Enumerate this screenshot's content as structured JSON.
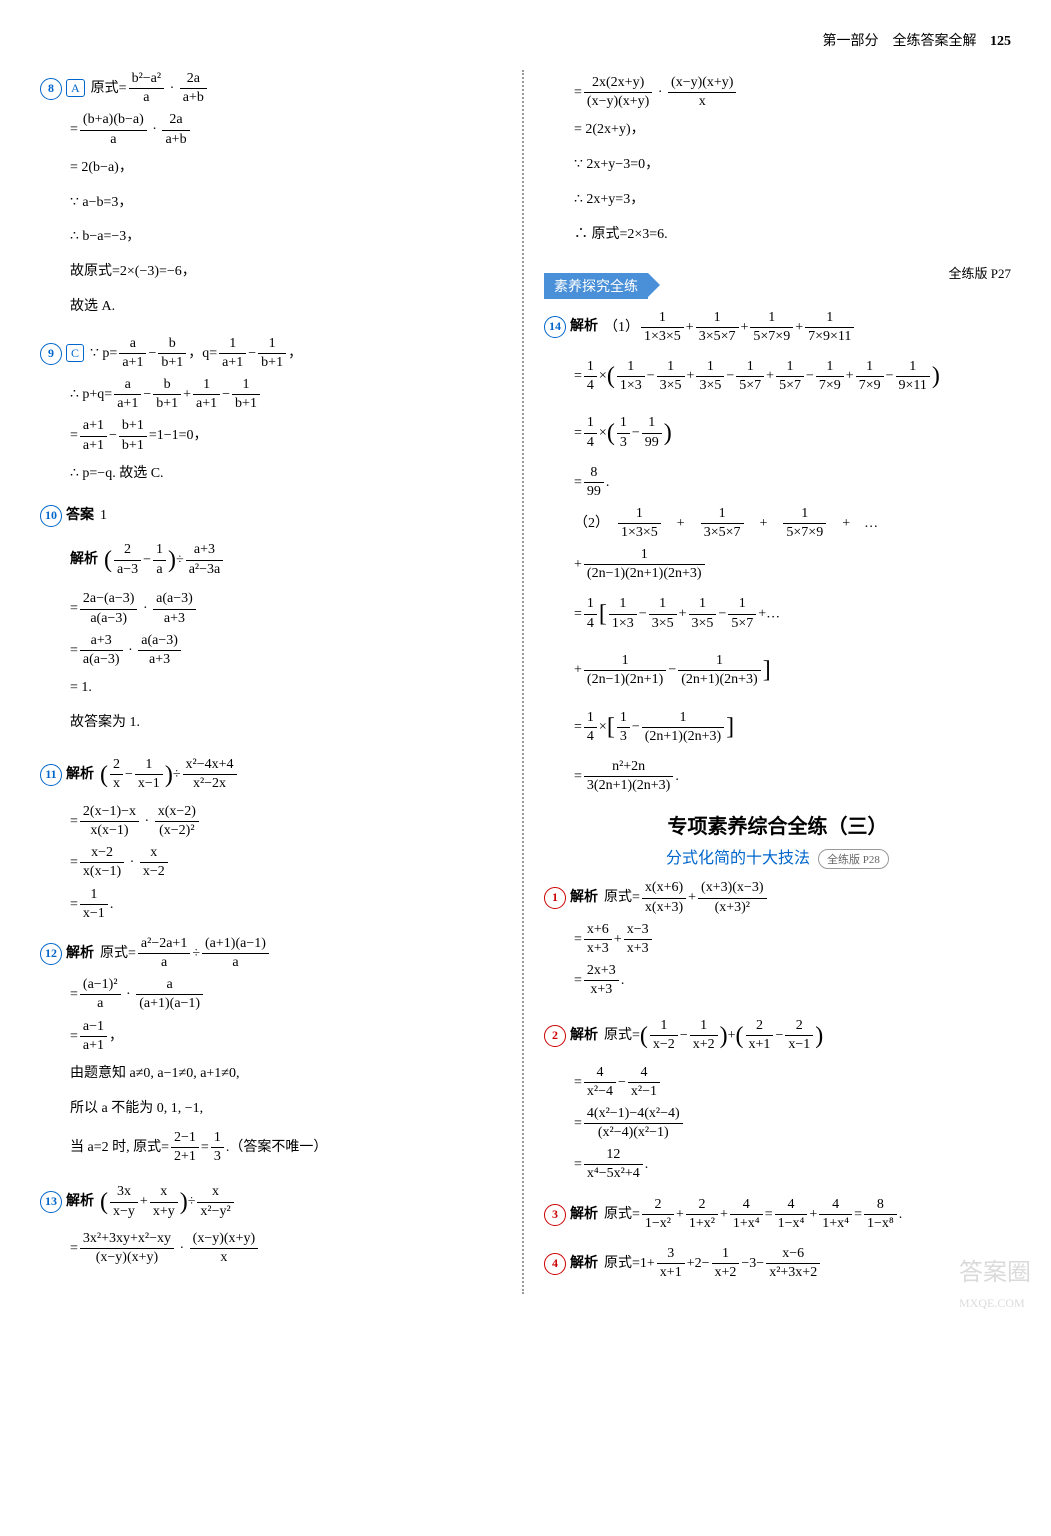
{
  "header": {
    "section": "第一部分　全练答案全解",
    "pagenum": "125"
  },
  "watermark": "答案圈",
  "watermark_url": "MXQE.COM",
  "left": {
    "p8": {
      "num": "8",
      "ans": "A",
      "lines": [
        "原式 = (b²−a²)/a · 2a/(a+b)",
        "= (b+a)(b−a)/a · 2a/(a+b)",
        "= 2(b−a)，",
        "∵ a−b=3，",
        "∴ b−a=−3，",
        "故原式=2×(−3)=−6，",
        "故选 A."
      ]
    },
    "p9": {
      "num": "9",
      "ans": "C",
      "lines": [
        "∵ p = a/(a+1) − b/(b+1)，q = 1/(a+1) − 1/(b+1)，",
        "∴ p+q = a/(a+1) − b/(b+1) + 1/(a+1) − 1/(b+1)",
        "= (a+1)/(a+1) − (b+1)/(b+1) = 1−1 = 0，",
        "∴ p=−q. 故选 C."
      ]
    },
    "p10": {
      "num": "10",
      "label": "答案",
      "answer": "1",
      "label2": "解析",
      "lines": [
        "(2/(a−3) − 1/a) ÷ (a+3)/(a²−3a)",
        "= [2a−(a−3)]/[a(a−3)] · a(a−3)/(a+3)",
        "= (a+3)/[a(a−3)] · a(a−3)/(a+3)",
        "= 1.",
        "故答案为 1."
      ]
    },
    "p11": {
      "num": "11",
      "label": "解析",
      "lines": [
        "(2/x − 1/(x−1)) ÷ (x²−4x+4)/(x²−2x)",
        "= [2(x−1)−x]/[x(x−1)] · x(x−2)/(x−2)²",
        "= (x−2)/[x(x−1)] · x/(x−2)",
        "= 1/(x−1)."
      ]
    },
    "p12": {
      "num": "12",
      "label": "解析",
      "lines": [
        "原式 = (a²−2a+1)/a ÷ (a+1)(a−1)/a",
        "= (a−1)²/a · a/[(a+1)(a−1)]",
        "= (a−1)/(a+1)，",
        "由题意知 a≠0, a−1≠0, a+1≠0,",
        "所以 a 不能为 0, 1, −1,",
        "当 a=2 时, 原式=(2−1)/(2+1)=1/3.（答案不唯一）"
      ]
    },
    "p13": {
      "num": "13",
      "label": "解析",
      "lines": [
        "(3x/(x−y) + x/(x+y)) ÷ x/(x²−y²)",
        "= (3x²+3xy+x²−xy)/[(x−y)(x+y)] · (x−y)(x+y)/x"
      ]
    }
  },
  "right": {
    "p13cont": {
      "lines": [
        "= 2x(2x+y)/[(x−y)(x+y)] · (x−y)(x+y)/x",
        "= 2(2x+y)，",
        "∵ 2x+y−3=0，",
        "∴ 2x+y=3，",
        "∴ 原式=2×3=6."
      ]
    },
    "banner1": {
      "text": "素养探究全练",
      "ref": "全练版 P27"
    },
    "p14": {
      "num": "14",
      "label": "解析",
      "part1_intro": "（1）",
      "part1_lines": [
        "1/(1×3×5) + 1/(3×5×7) + 1/(5×7×9) + 1/(7×9×11)",
        "= 1/4 × (1/(1×3) − 1/(3×5) + 1/(3×5) − 1/(5×7) + 1/(5×7) − 1/(7×9) + 1/(7×9) − 1/(9×11))",
        "= 1/4 × (1/3 − 1/99)",
        "= 8/99."
      ],
      "part2_intro": "（2）",
      "part2_lines": [
        "1/(1×3×5) + 1/(3×5×7) + 1/(5×7×9) + …",
        "+ 1/[(2n−1)(2n+1)(2n+3)]",
        "= 1/4 [1/(1×3) − 1/(3×5) + 1/(3×5) − 1/(5×7) + …",
        "+ 1/[(2n−1)(2n+1)] − 1/[(2n+1)(2n+3)]]",
        "= 1/4 × [1/3 − 1/[(2n+1)(2n+3)]]",
        "= (n²+2n)/[3(2n+1)(2n+3)]."
      ]
    },
    "big_title": "专项素养综合全练（三）",
    "sub_title": "分式化简的十大技法",
    "sub_pill": "全练版 P28",
    "q1": {
      "num": "1",
      "label": "解析",
      "lines": [
        "原式 = x(x+6)/[x(x+3)] + (x+3)(x−3)/(x+3)²",
        "= (x+6)/(x+3) + (x−3)/(x+3)",
        "= (2x+3)/(x+3)."
      ]
    },
    "q2": {
      "num": "2",
      "label": "解析",
      "lines": [
        "原式 = (1/(x−2) − 1/(x+2)) + (2/(x+1) − 2/(x−1))",
        "= 4/(x²−4) − 4/(x²−1)",
        "= [4(x²−1)−4(x²−4)]/[(x²−4)(x²−1)]",
        "= 12/(x⁴−5x²+4)."
      ]
    },
    "q3": {
      "num": "3",
      "label": "解析",
      "lines": [
        "原式 = 2/(1−x²) + 2/(1+x²) + 4/(1+x⁴) = 4/(1−x⁴) + 4/(1+x⁴) = 8/(1−x⁸)."
      ]
    },
    "q4": {
      "num": "4",
      "label": "解析",
      "lines": [
        "原式 = 1 + 3/(x+1) + 2 − 1/(x+2) − 3 − (x−6)/(x²+3x+2)"
      ]
    }
  }
}
